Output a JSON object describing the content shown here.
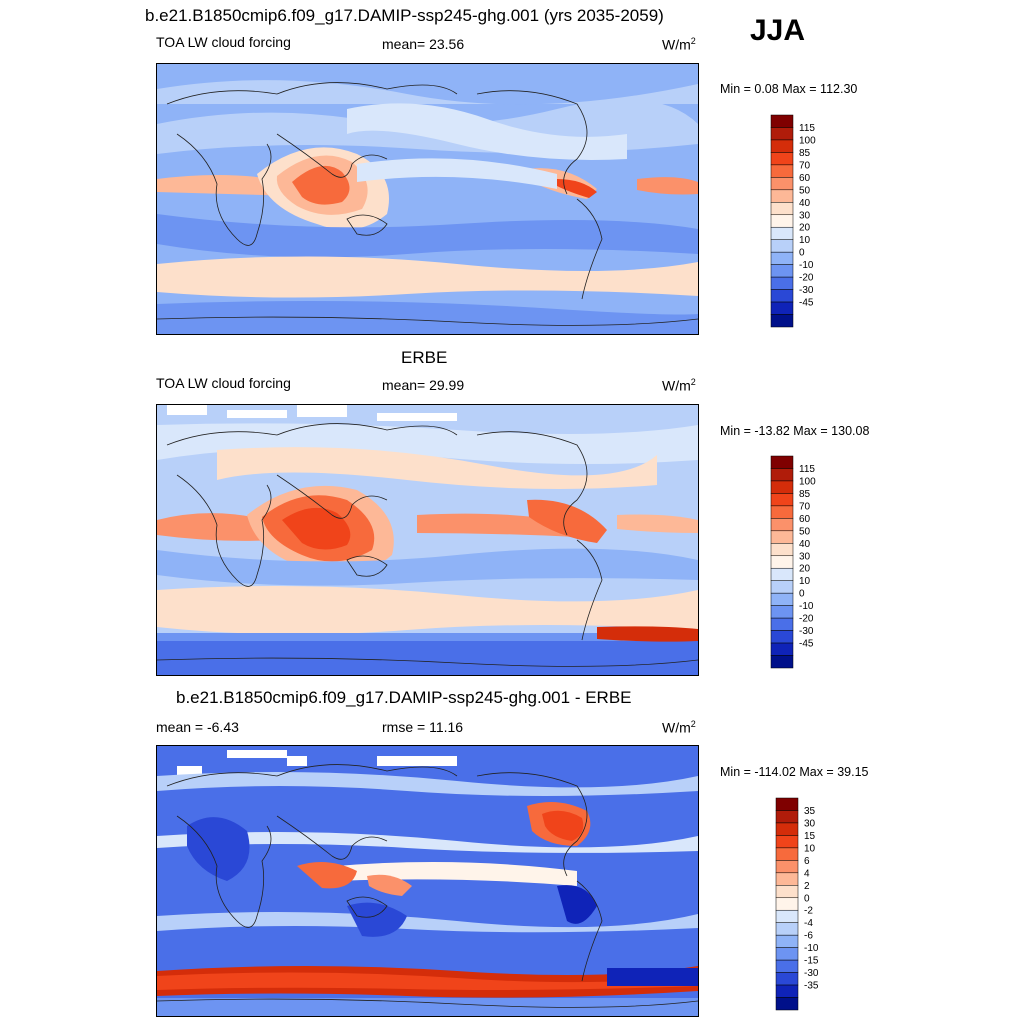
{
  "season": "JJA",
  "units_prefix": "W/m",
  "units_exp": "2",
  "panels": [
    {
      "id": "model",
      "title": "b.e21.B1850cmip6.f09_g17.DAMIP-ssp245-ghg.001 (yrs 2035-2059)",
      "variable": "TOA LW cloud forcing",
      "stat": "mean=  23.56",
      "minmax": "Min =   0.08 Max = 112.30",
      "colorbar_labels": [
        "115",
        "100",
        "85",
        "70",
        "60",
        "50",
        "40",
        "30",
        "20",
        "10",
        "0",
        "-10",
        "-20",
        "-30",
        "-45"
      ],
      "colors": [
        "#7f0000",
        "#b01c0a",
        "#d42d0a",
        "#f0441a",
        "#f76a3c",
        "#fb916a",
        "#fdb897",
        "#fde0cb",
        "#fff4ea",
        "#d9e7fb",
        "#b8d0f9",
        "#8fb3f7",
        "#6d94f2",
        "#4a6fe8",
        "#2a48d6",
        "#0f23b8",
        "#00108a"
      ]
    },
    {
      "id": "obs",
      "title": "ERBE",
      "variable": "TOA LW cloud forcing",
      "stat": "mean=  29.99",
      "minmax": "Min = -13.82 Max = 130.08",
      "colorbar_labels": [
        "115",
        "100",
        "85",
        "70",
        "60",
        "50",
        "40",
        "30",
        "20",
        "10",
        "0",
        "-10",
        "-20",
        "-30",
        "-45"
      ],
      "colors": [
        "#7f0000",
        "#b01c0a",
        "#d42d0a",
        "#f0441a",
        "#f76a3c",
        "#fb916a",
        "#fdb897",
        "#fde0cb",
        "#fff4ea",
        "#d9e7fb",
        "#b8d0f9",
        "#8fb3f7",
        "#6d94f2",
        "#4a6fe8",
        "#2a48d6",
        "#0f23b8",
        "#00108a"
      ]
    },
    {
      "id": "diff",
      "title": "b.e21.B1850cmip6.f09_g17.DAMIP-ssp245-ghg.001 - ERBE",
      "variable": "mean =  -6.43",
      "stat": "rmse =  11.16",
      "minmax": "Min = -114.02 Max =  39.15",
      "colorbar_labels": [
        "35",
        "30",
        "15",
        "10",
        "6",
        "4",
        "2",
        "0",
        "-2",
        "-4",
        "-6",
        "-10",
        "-15",
        "-30",
        "-35"
      ],
      "colors": [
        "#7f0000",
        "#b01c0a",
        "#d42d0a",
        "#f0441a",
        "#f76a3c",
        "#fb916a",
        "#fdb897",
        "#fde0cb",
        "#fff4ea",
        "#d9e7fb",
        "#b8d0f9",
        "#8fb3f7",
        "#6d94f2",
        "#4a6fe8",
        "#2a48d6",
        "#0f23b8",
        "#00108a"
      ]
    }
  ]
}
